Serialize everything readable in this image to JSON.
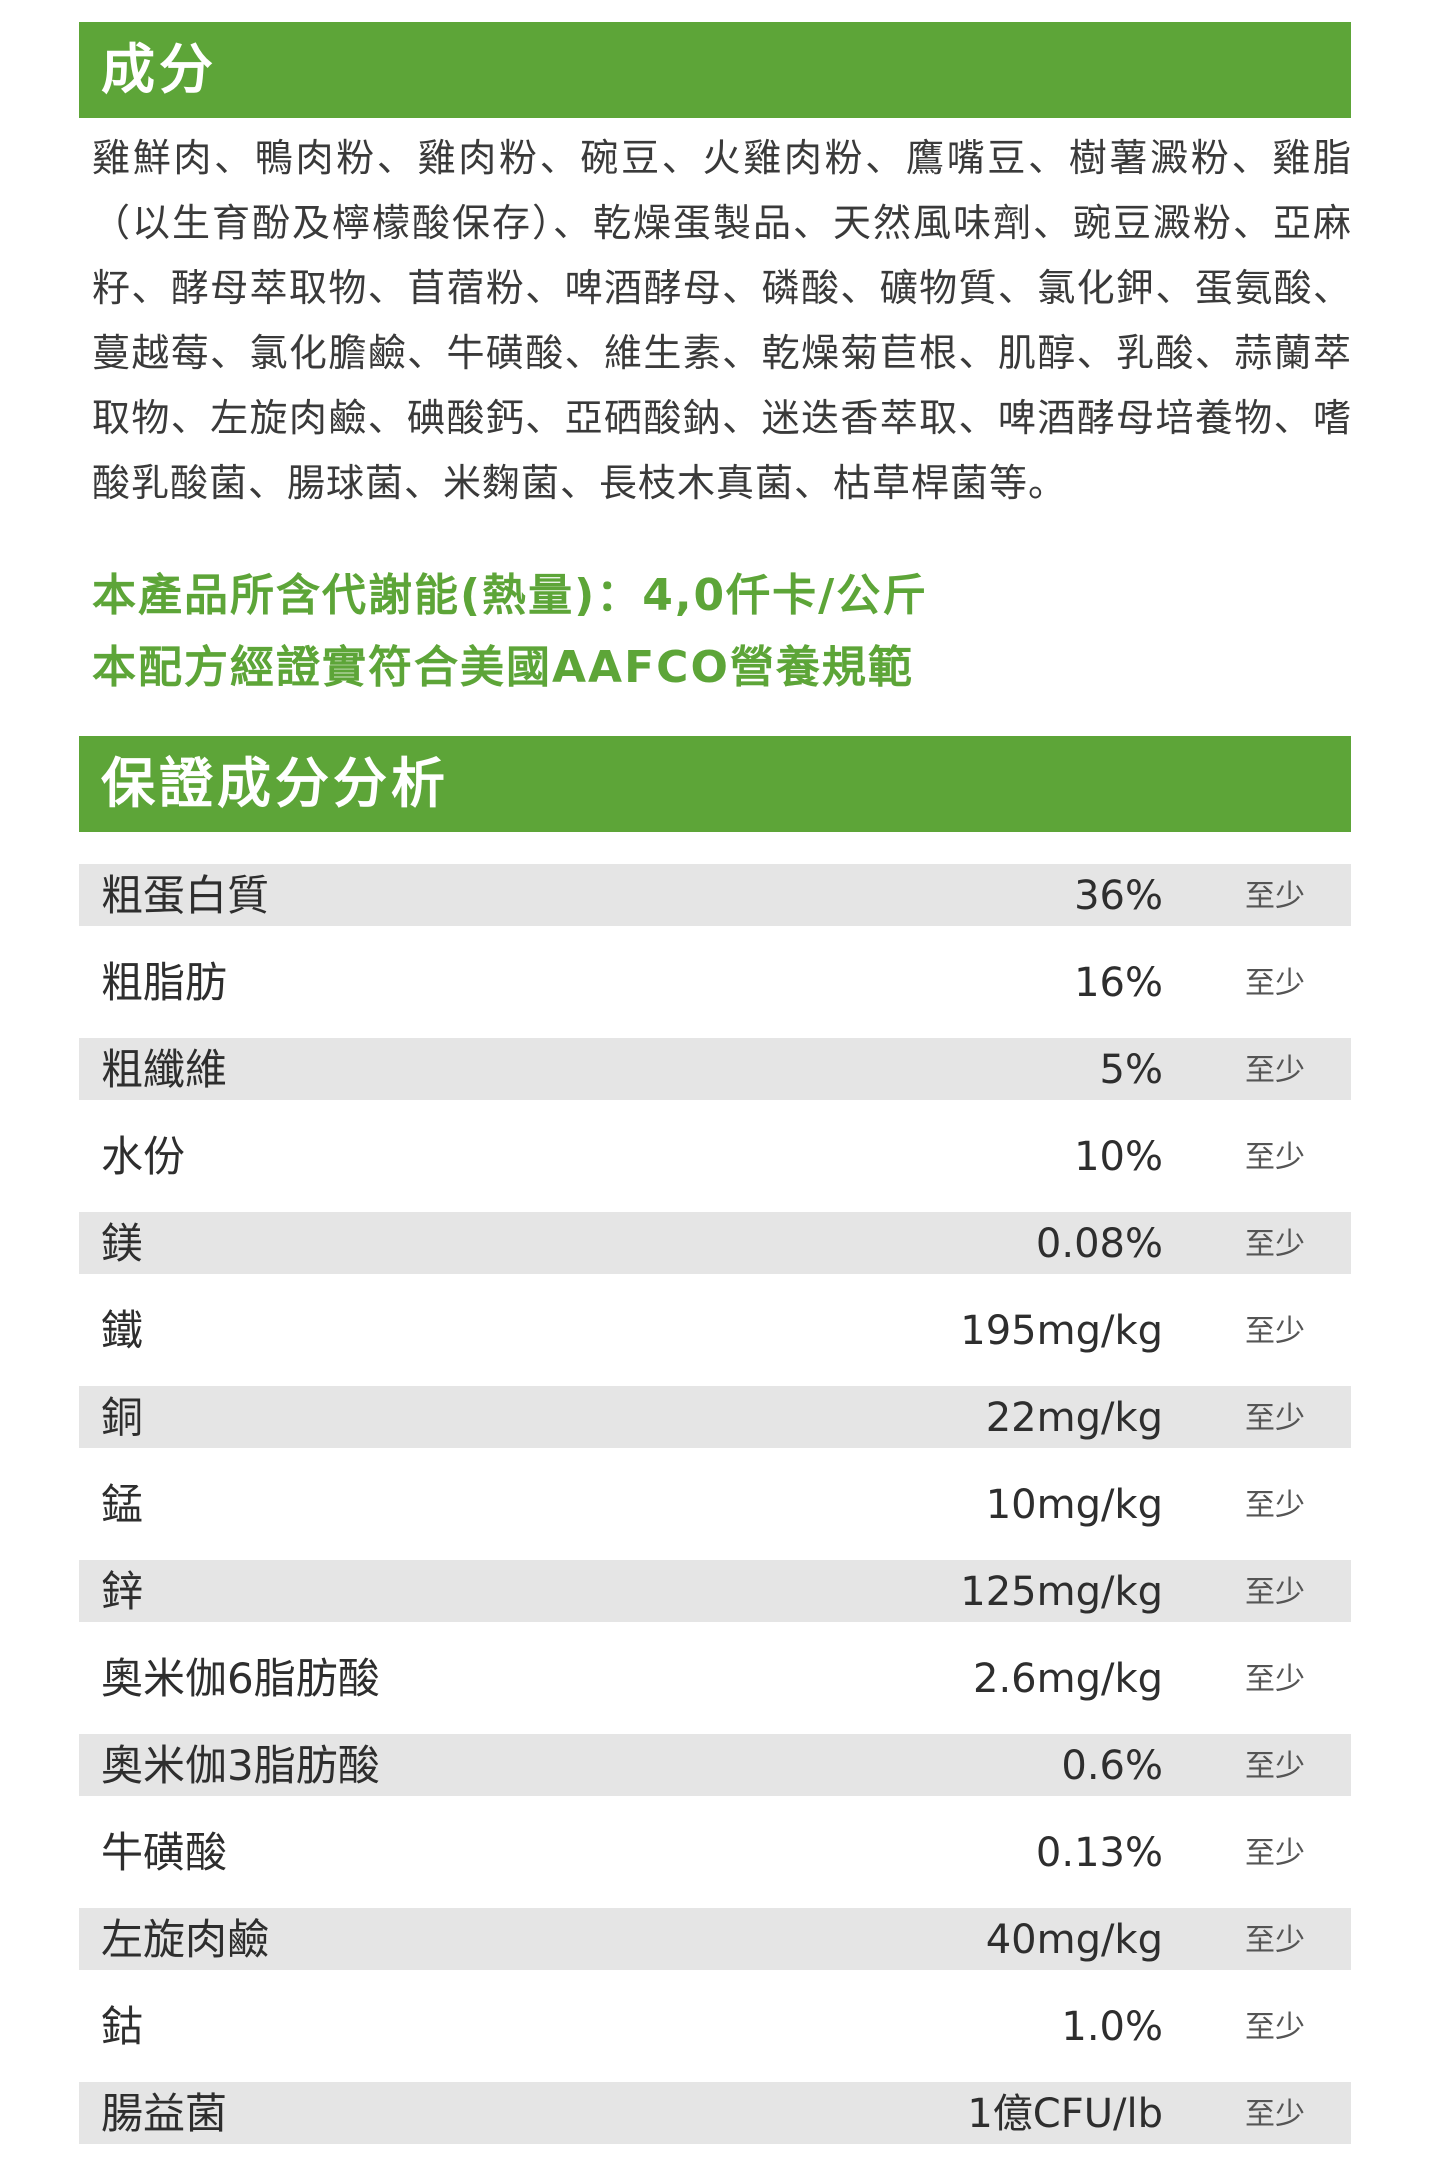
{
  "colors": {
    "accent_green": "#5da538",
    "row_shade": "#e5e5e5",
    "text": "#333333"
  },
  "ingredients": {
    "title": "成分",
    "text": "雞鮮肉、鴨肉粉、雞肉粉、碗豆、火雞肉粉、鷹嘴豆、樹薯澱粉、雞脂（以生育酚及檸檬酸保存）、乾燥蛋製品、天然風味劑、豌豆澱粉、亞麻籽、酵母萃取物、苜蓿粉、啤酒酵母、磷酸、礦物質、氯化鉀、蛋氨酸、蔓越莓、氯化膽鹼、牛磺酸、維生素、乾燥菊苣根、肌醇、乳酸、蒜蘭萃取物、左旋肉鹼、碘酸鈣、亞硒酸鈉、迷迭香萃取、啤酒酵母培養物、嗜酸乳酸菌、腸球菌、米麴菌、長枝木真菌、枯草桿菌等。"
  },
  "highlights": {
    "energy": "本產品所含代謝能(熱量)：4,0仟卡/公斤",
    "aafco": "本配方經證實符合美國AAFCO營養規範"
  },
  "analysis": {
    "title": "保證成分分析",
    "rows": [
      {
        "name": "粗蛋白質",
        "value": "36%",
        "qualifier": "至少"
      },
      {
        "name": "粗脂肪",
        "value": "16%",
        "qualifier": "至少"
      },
      {
        "name": "粗纖維",
        "value": "5%",
        "qualifier": "至少"
      },
      {
        "name": "水份",
        "value": "10%",
        "qualifier": "至少"
      },
      {
        "name": "鎂",
        "value": "0.08%",
        "qualifier": "至少"
      },
      {
        "name": "鐵",
        "value": "195mg/kg",
        "qualifier": "至少"
      },
      {
        "name": "銅",
        "value": "22mg/kg",
        "qualifier": "至少"
      },
      {
        "name": "錳",
        "value": "10mg/kg",
        "qualifier": "至少"
      },
      {
        "name": "鋅",
        "value": "125mg/kg",
        "qualifier": "至少"
      },
      {
        "name": "奧米伽6脂肪酸",
        "value": "2.6mg/kg",
        "qualifier": "至少"
      },
      {
        "name": "奧米伽3脂肪酸",
        "value": "0.6%",
        "qualifier": "至少"
      },
      {
        "name": "牛磺酸",
        "value": "0.13%",
        "qualifier": "至少"
      },
      {
        "name": "左旋肉鹼",
        "value": "40mg/kg",
        "qualifier": "至少"
      },
      {
        "name": "鈷",
        "value": "1.0%",
        "qualifier": "至少"
      },
      {
        "name": "腸益菌",
        "value": "1億CFU/lb",
        "qualifier": "至少"
      }
    ]
  }
}
